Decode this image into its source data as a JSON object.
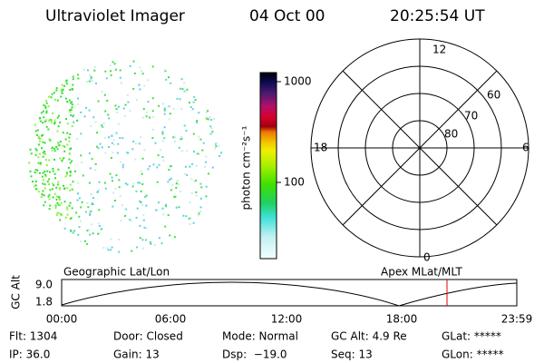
{
  "header": {
    "instrument": "Ultraviolet Imager",
    "date": "04 Oct 00",
    "time": "20:25:54 UT"
  },
  "colorbar": {
    "labels": [
      "1000",
      "100"
    ],
    "unit": "photon cm⁻²s⁻¹"
  },
  "polar": {
    "hour_labels": [
      "12",
      "18",
      "6",
      "0"
    ],
    "lat_labels": [
      "60",
      "70",
      "80"
    ]
  },
  "timeline": {
    "title_left": "Geographic Lat/Lon",
    "title_right": "Apex MLat/MLT",
    "y_label": "GC Alt",
    "y_ticks": [
      "9.0",
      "1.8"
    ],
    "x_ticks": [
      "00:00",
      "06:00",
      "12:00",
      "18:00",
      "23:59"
    ]
  },
  "info": {
    "rows": [
      [
        "Flt: 1304",
        "Door: Closed",
        "Mode: Normal",
        "GC Alt: 4.9 Re",
        "GLat: *****"
      ],
      [
        "IP: 36.0",
        "Gain: 13",
        "Dsp:  −19.0",
        "Seq: 13",
        "GLon: *****"
      ]
    ]
  }
}
